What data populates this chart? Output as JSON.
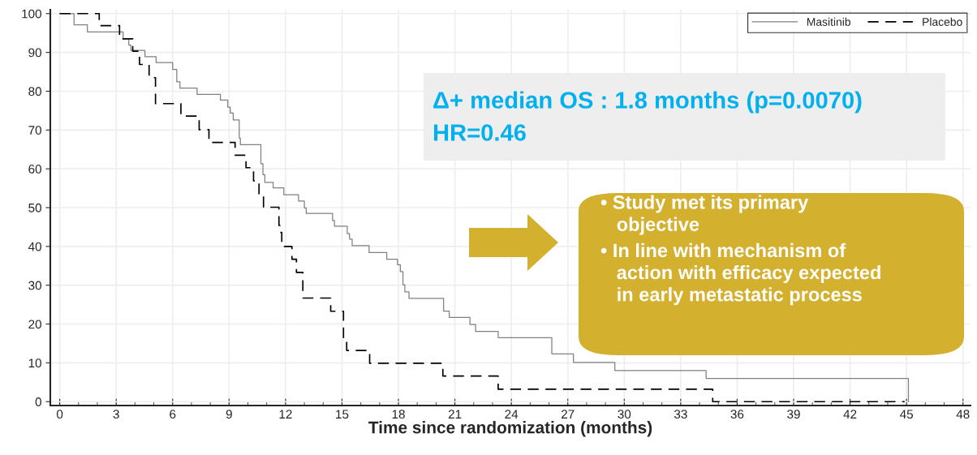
{
  "chart_data": {
    "type": "step",
    "xlabel": "Time since randomization (months)",
    "xlim": [
      -0.5,
      48.4
    ],
    "ylim": [
      -1,
      101
    ],
    "xticks": [
      0,
      3,
      6,
      9,
      12,
      15,
      18,
      21,
      24,
      27,
      30,
      33,
      36,
      39,
      42,
      45,
      48
    ],
    "yticks": [
      0,
      10,
      20,
      30,
      40,
      50,
      60,
      70,
      80,
      90,
      100
    ],
    "grid": true,
    "legend": "top right",
    "series": [
      {
        "name": "Masitinib",
        "color": "#808080",
        "line_style": "solid",
        "x": [
          0,
          0.76,
          1.47,
          3.37,
          3.67,
          3.78,
          4.53,
          5.12,
          6.0,
          6.22,
          6.39,
          7.3,
          8.54,
          8.93,
          9.06,
          9.22,
          9.54,
          9.6,
          10.69,
          10.8,
          10.9,
          11.34,
          11.91,
          12.69,
          13.0,
          13.1,
          14.5,
          14.6,
          15.28,
          15.4,
          15.54,
          16.44,
          17.38,
          17.95,
          18.1,
          18.24,
          18.34,
          18.56,
          20.4,
          20.7,
          21.8,
          22.1,
          23.3,
          26.15,
          27.3,
          29.5,
          34.35,
          45.1,
          45.1
        ],
        "values": [
          100,
          97.1,
          95.3,
          93.5,
          91.9,
          90.5,
          88.9,
          87.4,
          85.6,
          82.4,
          80.8,
          79.2,
          77.7,
          75.9,
          74.4,
          72.6,
          67.9,
          66.2,
          61.3,
          58.5,
          56.5,
          55.1,
          53.3,
          51.7,
          49.9,
          48.5,
          46.7,
          45.2,
          43.3,
          41.9,
          40.2,
          38.4,
          36.7,
          35.3,
          33.5,
          30.1,
          28.3,
          26.6,
          23.3,
          21.7,
          19.9,
          18.1,
          16.5,
          12.3,
          10.1,
          8.0,
          6.0,
          6.0,
          0
        ]
      },
      {
        "name": "Placebo",
        "color": "#000000",
        "line_style": "dashed",
        "x": [
          0,
          2.1,
          3.18,
          3.88,
          4.24,
          4.75,
          5.09,
          6.44,
          7.41,
          7.93,
          9.32,
          9.9,
          10.3,
          10.59,
          10.83,
          11.65,
          11.7,
          11.8,
          12.34,
          12.58,
          12.92,
          14.4,
          15.08,
          15.25,
          16.47,
          20.36,
          23.3,
          34.7,
          44.9
        ],
        "values": [
          100,
          96.9,
          93.5,
          90.3,
          86.9,
          83.5,
          76.8,
          73.6,
          70.1,
          66.8,
          63.5,
          60.3,
          56.9,
          53.3,
          50.1,
          45.4,
          43.6,
          40.0,
          36.7,
          33.3,
          26.7,
          23.3,
          16.5,
          13.2,
          9.9,
          6.6,
          3.2,
          0,
          0
        ]
      }
    ],
    "annotations": [
      "Δ+ median OS : 1.8 months (p=0.0070)",
      "HR=0.46",
      "• Study met its primary\n   objective",
      "• In line with mechanism of\n   action with efficacy expected\n   in early metastatic process"
    ]
  }
}
